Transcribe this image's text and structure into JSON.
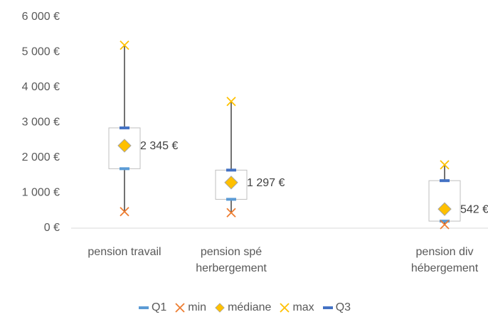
{
  "chart_data": {
    "type": "boxplot",
    "categories": [
      "pension travail",
      "pension spé herbergement",
      null,
      "pension div hébergement"
    ],
    "series": [
      {
        "name": "Q1",
        "color": "#5b9bd5",
        "marker": "dash",
        "values": [
          1690,
          820,
          null,
          200
        ]
      },
      {
        "name": "min",
        "color": "#ed7d31",
        "marker": "x",
        "values": [
          470,
          440,
          null,
          100
        ]
      },
      {
        "name": "médiane",
        "color": "#ffc000",
        "marker": "diamond",
        "values": [
          2345,
          1297,
          null,
          542
        ],
        "value_labels": [
          "2 345 €",
          "1 297 €",
          null,
          "542 €"
        ]
      },
      {
        "name": "max",
        "color": "#ffc000",
        "marker": "x",
        "values": [
          5200,
          3600,
          null,
          1800
        ]
      },
      {
        "name": "Q3",
        "color": "#4472c4",
        "marker": "dash",
        "values": [
          2850,
          1650,
          null,
          1350
        ]
      }
    ],
    "ylim": [
      0,
      6000
    ],
    "yticks": [
      {
        "value": 0,
        "label": "0 €"
      },
      {
        "value": 1000,
        "label": "1 000 €"
      },
      {
        "value": 2000,
        "label": "2 000 €"
      },
      {
        "value": 3000,
        "label": "3 000 €"
      },
      {
        "value": 4000,
        "label": "4 000 €"
      },
      {
        "value": 5000,
        "label": "5 000 €"
      },
      {
        "value": 6000,
        "label": "6 000 €"
      }
    ],
    "legend": "bottom"
  }
}
